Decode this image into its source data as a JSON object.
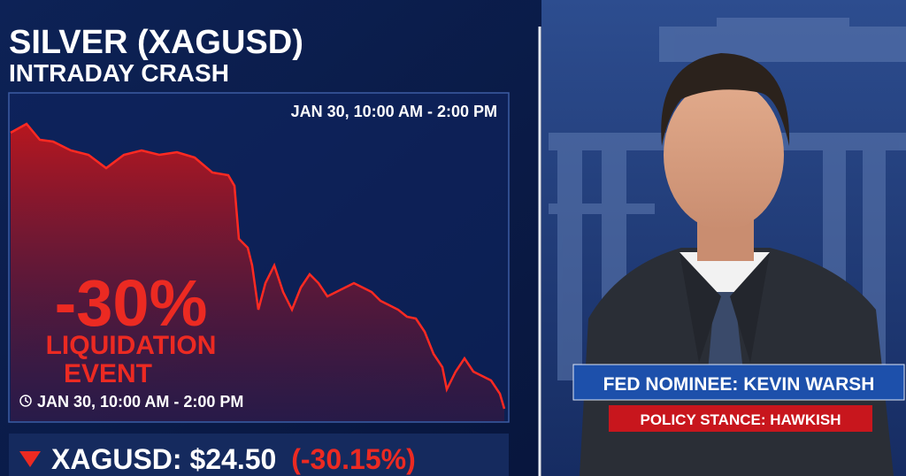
{
  "header": {
    "title": "SILVER (XAGUSD)",
    "subtitle": "INTRADAY CRASH"
  },
  "chart": {
    "time_range": "JAN 30, 10:00 AM - 2:00 PM",
    "headline": "-30%",
    "label_line1": "LIQUIDATION",
    "label_line2": "EVENT",
    "footer_time": "JAN 30, 10:00 AM - 2:00 PM"
  },
  "ticker": {
    "symbol": "XAGUSD: $24.50",
    "change": "(-30.15%)"
  },
  "lower_third": {
    "name": "FED NOMINEE: KEVIN WARSH",
    "stance": "POLICY STANCE: HAWKISH"
  }
}
